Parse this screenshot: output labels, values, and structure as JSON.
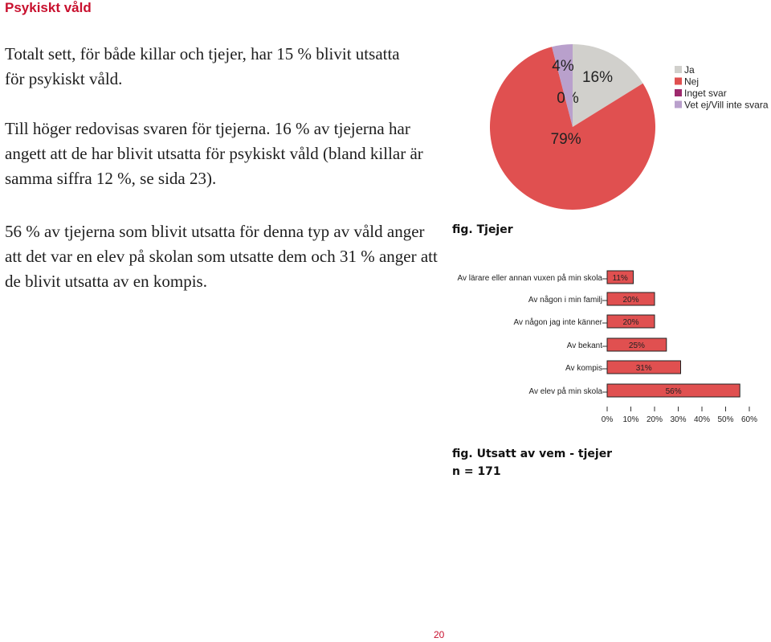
{
  "page": {
    "heading": "Psykiskt våld",
    "paragraphs": [
      "Totalt sett, för både killar och tjejer, har 15 % blivit utsatta för psykiskt våld.",
      "Till höger redovisas svaren för tjejerna. 16 % av tjejerna har angett att de har blivit utsatta för psykiskt våld (bland killar är samma siffra 12 %, se sida 23).",
      "56 % av tjejerna som blivit utsatta för denna typ av våld anger att det var en elev på skolan som utsatte dem och 31 % anger att de blivit utsatta av en kompis."
    ],
    "page_number": "20"
  },
  "chart_data": [
    {
      "type": "pie",
      "title": "",
      "caption": "fig. Tjejer",
      "labels": [
        "Ja",
        "Nej",
        "Inget svar",
        "Vet ej/Vill inte svara"
      ],
      "values": [
        16,
        79,
        0,
        4
      ],
      "display_labels": [
        "16%",
        "79%",
        "0%",
        "4%"
      ],
      "colors": [
        "#d1d0cc",
        "#e05050",
        "#9e2a6d",
        "#b9a0cc"
      ],
      "legend": "top-right"
    },
    {
      "type": "bar",
      "orientation": "horizontal",
      "title": "",
      "caption": "fig. Utsatt av vem - tjejer",
      "subcaption": "n = 171",
      "categories": [
        "Av lärare eller annan vuxen på min skola",
        "Av någon i min familj",
        "Av någon jag inte känner",
        "Av bekant",
        "Av kompis",
        "Av elev på min skola"
      ],
      "values": [
        11,
        20,
        20,
        25,
        31,
        56
      ],
      "data_labels": [
        "11%",
        "20%",
        "20%",
        "25%",
        "31%",
        "56%"
      ],
      "xlim": [
        0,
        60
      ],
      "xticks": [
        "0%",
        "10%",
        "20%",
        "30%",
        "40%",
        "50%",
        "60%"
      ],
      "bar_color": "#e05050"
    }
  ]
}
